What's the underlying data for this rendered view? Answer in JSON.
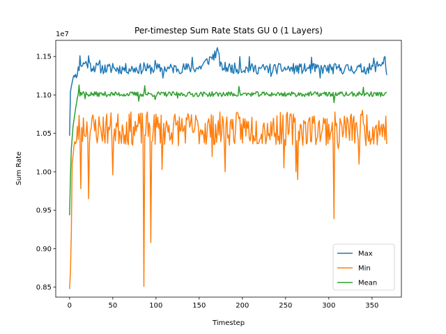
{
  "chart_data": {
    "type": "line",
    "title": "Per-timestep Sum Rate Stats GU 0 (1 Layers)",
    "xlabel": "Timestep",
    "ylabel": "Sum Rate",
    "y_offset_label": "1e7",
    "xlim": [
      -16,
      384
    ],
    "ylim": [
      0.837,
      1.171
    ],
    "xticks": [
      0,
      50,
      100,
      150,
      200,
      250,
      300,
      350
    ],
    "yticks": [
      0.85,
      0.9,
      0.95,
      1.0,
      1.05,
      1.1,
      1.15
    ],
    "ytick_labels": [
      "0.85",
      "0.90",
      "0.95",
      "1.00",
      "1.05",
      "1.10",
      "1.15"
    ],
    "legend_position": "lower right",
    "x_start": 0,
    "x_end": 367,
    "series": [
      {
        "name": "Max",
        "color": "#1f77b4",
        "anchors": [
          [
            0,
            1.048
          ],
          [
            1,
            1.105
          ],
          [
            3,
            1.118
          ],
          [
            5,
            1.124
          ],
          [
            7,
            1.126
          ],
          [
            9,
            1.13
          ],
          [
            11,
            1.135
          ],
          [
            13,
            1.14
          ],
          [
            15,
            1.138
          ],
          [
            17,
            1.142
          ],
          [
            20,
            1.141
          ],
          [
            25,
            1.137
          ],
          [
            30,
            1.136
          ],
          [
            40,
            1.134
          ],
          [
            60,
            1.134
          ],
          [
            100,
            1.134
          ],
          [
            150,
            1.135
          ],
          [
            172,
            1.156
          ],
          [
            175,
            1.136
          ],
          [
            200,
            1.134
          ],
          [
            250,
            1.134
          ],
          [
            300,
            1.134
          ],
          [
            350,
            1.134
          ],
          [
            363,
            1.143
          ],
          [
            365,
            1.15
          ],
          [
            367,
            1.127
          ]
        ],
        "noise_amp": 0.007,
        "seed": 11,
        "spikes": [
          [
            12,
            1.151
          ],
          [
            22,
            1.151
          ],
          [
            35,
            1.145
          ],
          [
            50,
            1.141
          ],
          [
            86,
            1.142
          ],
          [
            99,
            1.145
          ],
          [
            108,
            1.122
          ],
          [
            142,
            1.149
          ],
          [
            172,
            1.156
          ],
          [
            197,
            1.15
          ],
          [
            208,
            1.15
          ],
          [
            233,
            1.124
          ],
          [
            280,
            1.149
          ],
          [
            290,
            1.122
          ],
          [
            352,
            1.148
          ],
          [
            365,
            1.15
          ]
        ]
      },
      {
        "name": "Min",
        "color": "#ff7f0e",
        "anchors": [
          [
            0,
            0.851
          ],
          [
            2,
            0.92
          ],
          [
            3,
            1.01
          ],
          [
            5,
            1.03
          ],
          [
            7,
            1.04
          ],
          [
            10,
            1.055
          ],
          [
            14,
            1.058
          ],
          [
            20,
            1.058
          ],
          [
            30,
            1.056
          ],
          [
            367,
            1.056
          ]
        ],
        "noise_amp": 0.022,
        "seed": 23,
        "spikes": [
          [
            1,
            0.87
          ],
          [
            8,
            1.04
          ],
          [
            13,
            0.978
          ],
          [
            22,
            0.965
          ],
          [
            50,
            0.996
          ],
          [
            86,
            0.851
          ],
          [
            94,
            0.908
          ],
          [
            107,
            1.003
          ],
          [
            165,
            1.02
          ],
          [
            180,
            1.0
          ],
          [
            248,
            1.005
          ],
          [
            262,
            1.0
          ],
          [
            264,
            0.99
          ],
          [
            306,
            0.939
          ],
          [
            311,
            1.03
          ],
          [
            335,
            1.01
          ],
          [
            339,
            1.08
          ]
        ]
      },
      {
        "name": "Mean",
        "color": "#2ca02c",
        "anchors": [
          [
            0,
            0.944
          ],
          [
            1,
            0.993
          ],
          [
            2,
            1.03
          ],
          [
            4,
            1.06
          ],
          [
            6,
            1.075
          ],
          [
            8,
            1.09
          ],
          [
            10,
            1.1
          ],
          [
            15,
            1.103
          ],
          [
            20,
            1.101
          ],
          [
            30,
            1.101
          ],
          [
            367,
            1.101
          ]
        ],
        "noise_amp": 0.0032,
        "seed": 37,
        "spikes": [
          [
            11,
            1.113
          ],
          [
            18,
            1.095
          ],
          [
            80,
            1.092
          ],
          [
            87,
            1.112
          ],
          [
            99,
            1.094
          ],
          [
            125,
            1.096
          ],
          [
            196,
            1.111
          ],
          [
            306,
            1.09
          ],
          [
            340,
            1.11
          ]
        ]
      }
    ]
  }
}
